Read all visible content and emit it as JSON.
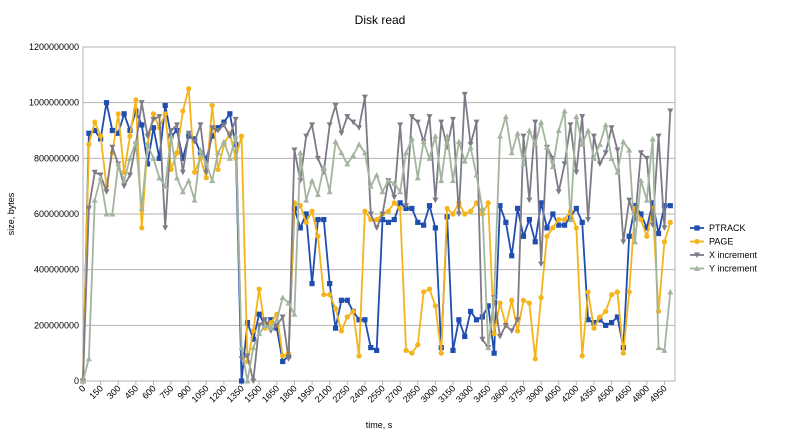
{
  "chart_data": {
    "type": "line",
    "title": "Disk read",
    "x_label": "time, s",
    "y_label": "size, bytes",
    "x": [
      0,
      50,
      100,
      150,
      200,
      250,
      300,
      350,
      400,
      450,
      500,
      550,
      600,
      650,
      700,
      750,
      800,
      850,
      900,
      950,
      1000,
      1050,
      1100,
      1150,
      1200,
      1250,
      1300,
      1350,
      1400,
      1450,
      1500,
      1550,
      1600,
      1650,
      1700,
      1750,
      1800,
      1850,
      1900,
      1950,
      2000,
      2050,
      2100,
      2150,
      2200,
      2250,
      2300,
      2350,
      2400,
      2450,
      2500,
      2550,
      2600,
      2650,
      2700,
      2750,
      2800,
      2850,
      2900,
      2950,
      3000,
      3050,
      3100,
      3150,
      3200,
      3250,
      3300,
      3350,
      3400,
      3450,
      3500,
      3550,
      3600,
      3650,
      3700,
      3750,
      3800,
      3850,
      3900,
      3950,
      4000,
      4050,
      4100,
      4150,
      4200,
      4250,
      4300,
      4350,
      4400,
      4450,
      4500,
      4550,
      4600,
      4650,
      4700,
      4750,
      4800,
      4850,
      4900,
      4950,
      5000
    ],
    "xlim": [
      0,
      5040
    ],
    "xticks": [
      0,
      150,
      300,
      450,
      600,
      750,
      900,
      1050,
      1200,
      1350,
      1500,
      1650,
      1800,
      1950,
      2100,
      2250,
      2400,
      2550,
      2700,
      2850,
      3000,
      3150,
      3300,
      3450,
      3600,
      3750,
      3900,
      4050,
      4200,
      4350,
      4500,
      4650,
      4800,
      4950
    ],
    "ylim": [
      0,
      1200000000
    ],
    "yticks": [
      0,
      200000000,
      400000000,
      600000000,
      800000000,
      1000000000,
      1200000000
    ],
    "grid": true,
    "legend": "right",
    "series": [
      {
        "name": "PTRACK",
        "color": "#1f4db0",
        "marker": "square",
        "values": [
          0,
          890000000,
          900000000,
          870000000,
          1000000000,
          900000000,
          890000000,
          960000000,
          900000000,
          970000000,
          920000000,
          780000000,
          910000000,
          800000000,
          990000000,
          880000000,
          900000000,
          800000000,
          880000000,
          870000000,
          820000000,
          800000000,
          880000000,
          910000000,
          930000000,
          960000000,
          850000000,
          0,
          210000000,
          150000000,
          240000000,
          200000000,
          220000000,
          190000000,
          70000000,
          90000000,
          620000000,
          550000000,
          600000000,
          350000000,
          580000000,
          580000000,
          350000000,
          190000000,
          290000000,
          290000000,
          250000000,
          220000000,
          220000000,
          120000000,
          110000000,
          580000000,
          570000000,
          580000000,
          640000000,
          620000000,
          620000000,
          570000000,
          560000000,
          630000000,
          550000000,
          120000000,
          590000000,
          110000000,
          220000000,
          160000000,
          250000000,
          220000000,
          230000000,
          270000000,
          100000000,
          630000000,
          570000000,
          450000000,
          620000000,
          520000000,
          580000000,
          500000000,
          640000000,
          550000000,
          600000000,
          560000000,
          560000000,
          590000000,
          620000000,
          570000000,
          220000000,
          210000000,
          220000000,
          200000000,
          210000000,
          230000000,
          120000000,
          520000000,
          630000000,
          600000000,
          550000000,
          640000000,
          530000000,
          630000000,
          630000000
        ]
      },
      {
        "name": "PAGE",
        "color": "#f4b41a",
        "marker": "circle",
        "values": [
          0,
          850000000,
          930000000,
          880000000,
          700000000,
          820000000,
          960000000,
          750000000,
          880000000,
          1010000000,
          550000000,
          850000000,
          960000000,
          910000000,
          960000000,
          760000000,
          820000000,
          970000000,
          1050000000,
          750000000,
          800000000,
          730000000,
          990000000,
          760000000,
          850000000,
          890000000,
          800000000,
          880000000,
          70000000,
          180000000,
          330000000,
          190000000,
          210000000,
          240000000,
          90000000,
          100000000,
          640000000,
          630000000,
          570000000,
          610000000,
          520000000,
          310000000,
          310000000,
          260000000,
          180000000,
          230000000,
          250000000,
          90000000,
          610000000,
          580000000,
          580000000,
          600000000,
          610000000,
          640000000,
          620000000,
          110000000,
          100000000,
          130000000,
          320000000,
          330000000,
          270000000,
          100000000,
          620000000,
          600000000,
          640000000,
          600000000,
          610000000,
          640000000,
          600000000,
          640000000,
          170000000,
          280000000,
          200000000,
          290000000,
          180000000,
          290000000,
          280000000,
          80000000,
          300000000,
          520000000,
          550000000,
          580000000,
          580000000,
          610000000,
          550000000,
          90000000,
          320000000,
          190000000,
          230000000,
          250000000,
          310000000,
          320000000,
          100000000,
          320000000,
          620000000,
          580000000,
          520000000,
          620000000,
          250000000,
          500000000,
          570000000
        ]
      },
      {
        "name": "X increment",
        "color": "#7e7a86",
        "marker": "triangle-down",
        "values": [
          0,
          620000000,
          750000000,
          740000000,
          680000000,
          840000000,
          780000000,
          700000000,
          740000000,
          850000000,
          1000000000,
          880000000,
          940000000,
          950000000,
          550000000,
          900000000,
          920000000,
          750000000,
          890000000,
          860000000,
          920000000,
          750000000,
          910000000,
          900000000,
          920000000,
          880000000,
          940000000,
          80000000,
          90000000,
          0,
          200000000,
          220000000,
          180000000,
          200000000,
          230000000,
          80000000,
          830000000,
          720000000,
          880000000,
          920000000,
          800000000,
          750000000,
          920000000,
          990000000,
          890000000,
          950000000,
          930000000,
          910000000,
          1020000000,
          600000000,
          550000000,
          600000000,
          720000000,
          660000000,
          920000000,
          630000000,
          950000000,
          930000000,
          860000000,
          950000000,
          650000000,
          930000000,
          840000000,
          940000000,
          600000000,
          1030000000,
          850000000,
          930000000,
          150000000,
          120000000,
          300000000,
          160000000,
          200000000,
          180000000,
          220000000,
          880000000,
          650000000,
          930000000,
          420000000,
          840000000,
          800000000,
          680000000,
          780000000,
          920000000,
          750000000,
          950000000,
          580000000,
          880000000,
          780000000,
          820000000,
          910000000,
          830000000,
          500000000,
          650000000,
          580000000,
          820000000,
          800000000,
          560000000,
          880000000,
          550000000,
          970000000
        ]
      },
      {
        "name": "Y increment",
        "color": "#a3b59e",
        "marker": "triangle-up",
        "values": [
          0,
          80000000,
          650000000,
          730000000,
          600000000,
          600000000,
          780000000,
          720000000,
          800000000,
          860000000,
          620000000,
          850000000,
          800000000,
          730000000,
          700000000,
          880000000,
          730000000,
          680000000,
          720000000,
          650000000,
          830000000,
          780000000,
          720000000,
          820000000,
          860000000,
          800000000,
          880000000,
          120000000,
          0,
          120000000,
          170000000,
          200000000,
          190000000,
          220000000,
          300000000,
          280000000,
          240000000,
          820000000,
          650000000,
          720000000,
          670000000,
          770000000,
          680000000,
          860000000,
          820000000,
          780000000,
          810000000,
          850000000,
          820000000,
          700000000,
          740000000,
          680000000,
          720000000,
          710000000,
          680000000,
          820000000,
          870000000,
          730000000,
          860000000,
          800000000,
          880000000,
          720000000,
          880000000,
          720000000,
          860000000,
          790000000,
          840000000,
          740000000,
          620000000,
          120000000,
          300000000,
          880000000,
          950000000,
          820000000,
          890000000,
          780000000,
          900000000,
          850000000,
          930000000,
          840000000,
          770000000,
          900000000,
          970000000,
          580000000,
          950000000,
          850000000,
          900000000,
          800000000,
          850000000,
          920000000,
          800000000,
          750000000,
          860000000,
          830000000,
          500000000,
          720000000,
          650000000,
          870000000,
          120000000,
          110000000,
          320000000
        ]
      }
    ]
  }
}
